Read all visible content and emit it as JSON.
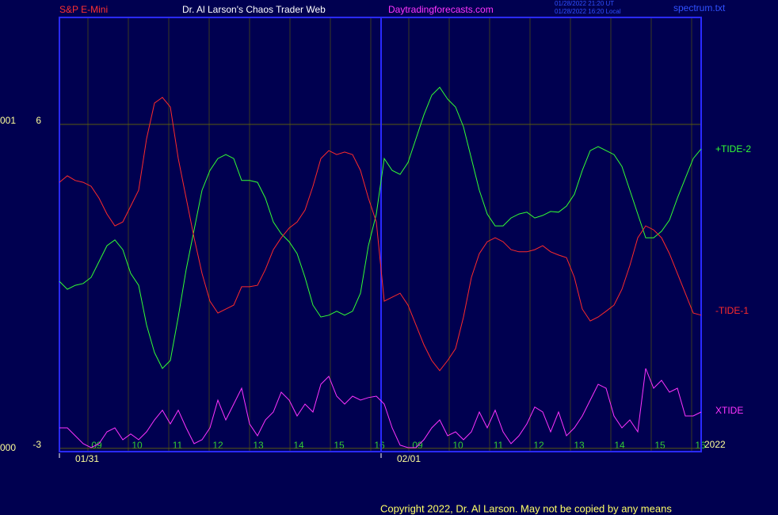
{
  "chart_data": {
    "type": "line",
    "instrument": "S&P E-Mini",
    "title": "Dr. Al Larson's Chaos Trader Web",
    "site": "Daytradingforecasts.com",
    "timestamps": [
      "01/28/2022 21:20 UT",
      "01/28/2022 16:20 Local"
    ],
    "file": "spectrum.txt",
    "year": "2022",
    "copyright": "Copyright 2022, Dr. Al Larson. May not be copied by any means",
    "side_labels": [
      "001",
      "000"
    ],
    "xlim": [
      0,
      81
    ],
    "ylim": [
      -3.09,
      8.97
    ],
    "yticks": [
      6,
      -3
    ],
    "grid": true,
    "xticks": [
      {
        "value": 3.6,
        "label": "09"
      },
      {
        "value": 8.7,
        "label": "10"
      },
      {
        "value": 13.8,
        "label": "11"
      },
      {
        "value": 18.9,
        "label": "12"
      },
      {
        "value": 24,
        "label": "13"
      },
      {
        "value": 29.1,
        "label": "14"
      },
      {
        "value": 34.2,
        "label": "15"
      },
      {
        "value": 39.3,
        "label": "16"
      },
      {
        "value": 44.1,
        "label": "09"
      },
      {
        "value": 49.2,
        "label": "10"
      },
      {
        "value": 54.3,
        "label": "11"
      },
      {
        "value": 59.4,
        "label": "12"
      },
      {
        "value": 64.5,
        "label": "13"
      },
      {
        "value": 69.6,
        "label": "14"
      },
      {
        "value": 74.7,
        "label": "15"
      },
      {
        "value": 79.8,
        "label": "16"
      }
    ],
    "date_ticks": [
      {
        "value": 0,
        "label": "01/31"
      },
      {
        "value": 40.6,
        "label": "02/01"
      }
    ],
    "series": [
      {
        "name": "+TIDE-2",
        "color": "#33ff33",
        "values": [
          1.64,
          1.42,
          1.53,
          1.58,
          1.75,
          2.19,
          2.63,
          2.79,
          2.52,
          1.86,
          1.53,
          0.43,
          -0.34,
          -0.78,
          -0.56,
          0.65,
          1.97,
          3.07,
          4.17,
          4.72,
          5.05,
          5.16,
          5.05,
          4.44,
          4.44,
          4.39,
          3.95,
          3.29,
          2.96,
          2.74,
          2.41,
          1.75,
          0.98,
          0.65,
          0.7,
          0.81,
          0.7,
          0.81,
          1.31,
          2.63,
          3.51,
          5.05,
          4.72,
          4.61,
          4.94,
          5.6,
          6.26,
          6.81,
          7.03,
          6.7,
          6.48,
          5.93,
          5.05,
          4.17,
          3.51,
          3.18,
          3.18,
          3.4,
          3.51,
          3.56,
          3.4,
          3.47,
          3.58,
          3.56,
          3.73,
          4.06,
          4.72,
          5.27,
          5.38,
          5.27,
          5.16,
          4.83,
          4.17,
          3.51,
          2.85,
          2.85,
          3.03,
          3.34,
          3.95,
          4.5,
          5.05,
          5.32
        ]
      },
      {
        "name": "-TIDE-1",
        "color": "#ff2a2a",
        "values": [
          4.39,
          4.57,
          4.44,
          4.39,
          4.28,
          3.95,
          3.51,
          3.18,
          3.29,
          3.73,
          4.17,
          5.6,
          6.59,
          6.75,
          6.48,
          5.05,
          3.95,
          2.85,
          1.86,
          1.09,
          0.76,
          0.87,
          0.98,
          1.49,
          1.49,
          1.53,
          1.97,
          2.52,
          2.85,
          3.12,
          3.29,
          3.62,
          4.28,
          5.05,
          5.27,
          5.16,
          5.23,
          5.16,
          4.72,
          3.95,
          3.29,
          1.09,
          1.2,
          1.31,
          0.98,
          0.43,
          -0.12,
          -0.56,
          -0.84,
          -0.56,
          -0.23,
          0.65,
          1.75,
          2.41,
          2.74,
          2.85,
          2.74,
          2.52,
          2.46,
          2.46,
          2.52,
          2.63,
          2.46,
          2.37,
          2.3,
          1.75,
          0.87,
          0.54,
          0.65,
          0.81,
          0.98,
          1.42,
          2.08,
          2.85,
          3.18,
          3.07,
          2.85,
          2.41,
          1.86,
          1.31,
          0.76,
          0.7
        ]
      },
      {
        "name": "XTIDE",
        "color": "#ff33ff",
        "values": [
          -2.43,
          -2.43,
          -2.65,
          -2.87,
          -2.98,
          -2.87,
          -2.54,
          -2.43,
          -2.76,
          -2.6,
          -2.76,
          -2.54,
          -2.21,
          -1.94,
          -2.32,
          -1.94,
          -2.43,
          -2.87,
          -2.76,
          -2.43,
          -1.66,
          -2.21,
          -1.77,
          -1.33,
          -2.32,
          -2.65,
          -2.21,
          -1.99,
          -1.44,
          -1.66,
          -2.1,
          -1.77,
          -1.99,
          -1.22,
          -1.0,
          -1.55,
          -1.77,
          -1.55,
          -1.66,
          -1.59,
          -1.55,
          -1.77,
          -2.43,
          -2.91,
          -2.98,
          -2.98,
          -2.76,
          -2.43,
          -2.21,
          -2.65,
          -2.54,
          -2.76,
          -2.54,
          -1.99,
          -2.43,
          -1.94,
          -2.54,
          -2.87,
          -2.65,
          -2.32,
          -1.85,
          -1.99,
          -2.54,
          -1.99,
          -2.65,
          -2.43,
          -2.1,
          -1.66,
          -1.22,
          -1.33,
          -2.1,
          -2.43,
          -2.21,
          -2.54,
          -0.78,
          -1.33,
          -1.11,
          -1.44,
          -1.33,
          -2.1,
          -2.1,
          -1.99
        ]
      }
    ]
  }
}
